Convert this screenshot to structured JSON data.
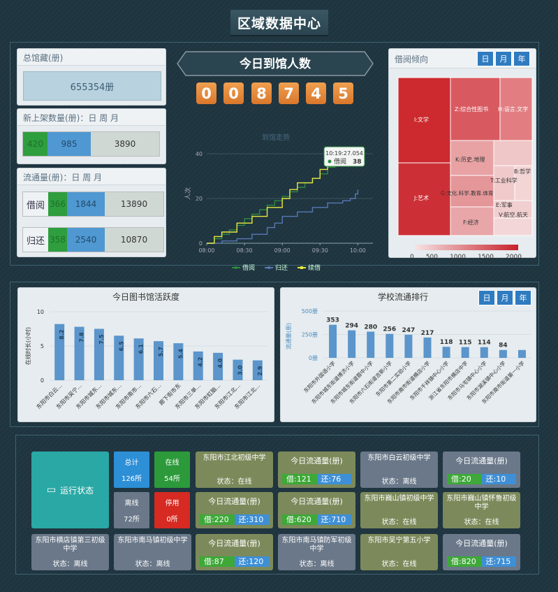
{
  "page_title": "区域数据中心",
  "collection": {
    "label": "总馆藏(册)",
    "value": "655354册"
  },
  "new_shelf": {
    "label": "新上架数量(册)：日 周 月",
    "values": [
      "420",
      "985",
      "3890"
    ]
  },
  "circulation": {
    "label": "流通量(册)：日 周 月",
    "borrow": {
      "label": "借阅",
      "values": [
        "366",
        "1844",
        "13890"
      ]
    },
    "return": {
      "label": "归还",
      "values": [
        "358",
        "2540",
        "10870"
      ]
    }
  },
  "today_visitors": {
    "title": "今日到馆人数",
    "digits": [
      "0",
      "0",
      "8",
      "7",
      "4",
      "5"
    ]
  },
  "line_chart": {
    "title": "到馆走势",
    "ylabel": "人次",
    "tooltip_time": "10:19:27.054",
    "tooltip_label": "借阅",
    "tooltip_value": "38",
    "legend": [
      "借阅",
      "归还",
      "续借"
    ],
    "colors": {
      "borrow": "#2e8b3e",
      "return": "#5a78b5",
      "renew": "#e8e840"
    }
  },
  "tendency": {
    "title": "借阅倾向",
    "tabs": [
      "日",
      "月",
      "年"
    ],
    "scale": [
      "0",
      "500",
      "1000",
      "1500",
      "2000"
    ],
    "labels": [
      "I:文学",
      "Z:综合性图书",
      "H:语言.文字",
      "K:历史.地理",
      "J:艺术",
      "G:文化.科学.教育.体育",
      "T:工业科学",
      "B:哲学",
      "E:军事",
      "F:经济",
      "V:航空.航天"
    ]
  },
  "activity": {
    "title": "今日图书馆活跃度",
    "ylabel": "在线时长(小时)"
  },
  "ranking": {
    "title": "学校流通排行",
    "tabs": [
      "日",
      "月",
      "年"
    ],
    "ylabel": "流通量(册)"
  },
  "status": {
    "main_label": "运行状态",
    "total": {
      "label": "总计",
      "value": "126所"
    },
    "online": {
      "label": "在线",
      "value": "54所"
    },
    "offline": {
      "label": "离线",
      "value": "72所"
    },
    "disabled": {
      "label": "停用",
      "value": "0所"
    },
    "flow_label": "今日流通量(册)",
    "schools": [
      {
        "name": "东阳市江北初级中学",
        "status": "状态：在线"
      },
      {
        "name": "东阳市白云初级中学",
        "status": "状态：离线"
      },
      {
        "name": "东阳市巍山镇初级中学",
        "status": "状态：在线"
      },
      {
        "name": "东阳市巍山镇怀鲁初级中学",
        "status": "状态：在线"
      },
      {
        "name": "东阳市横店镇第三初级中学",
        "status": "状态：离线"
      },
      {
        "name": "东阳市南马镇初级中学",
        "status": "状态：离线"
      },
      {
        "name": "东阳市南马镇防军初级中学",
        "status": "状态：离线"
      },
      {
        "name": "东阳市吴宁第五小学",
        "status": "状态：在线"
      }
    ],
    "flows": [
      {
        "borrow": "借:121",
        "return": "还:76"
      },
      {
        "borrow": "借:20",
        "return": "还:10"
      },
      {
        "borrow": "借:220",
        "return": "还:310"
      },
      {
        "borrow": "借:620",
        "return": "还:710"
      },
      {
        "borrow": "借:87",
        "return": "还:120"
      },
      {
        "borrow": "借:820",
        "return": "还:715"
      }
    ]
  },
  "chart_data": [
    {
      "type": "line",
      "title": "到馆走势",
      "ylabel": "人次",
      "xlabel": "",
      "x_ticks": [
        "08:00",
        "08:30",
        "09:00",
        "09:30",
        "10:00"
      ],
      "y_ticks": [
        "0",
        "20",
        "40"
      ],
      "ylim": [
        0,
        45
      ],
      "series": [
        {
          "name": "借阅",
          "points": [
            [
              0,
              0
            ],
            [
              6,
              2
            ],
            [
              12,
              4
            ],
            [
              18,
              6
            ],
            [
              24,
              8
            ],
            [
              30,
              11
            ],
            [
              36,
              13
            ],
            [
              42,
              15
            ],
            [
              48,
              17
            ],
            [
              54,
              19
            ],
            [
              60,
              21
            ],
            [
              66,
              23
            ],
            [
              72,
              25
            ],
            [
              78,
              27
            ],
            [
              84,
              29
            ],
            [
              90,
              31
            ],
            [
              96,
              34
            ],
            [
              102,
              36
            ],
            [
              108,
              37
            ],
            [
              114,
              38
            ],
            [
              120,
              38
            ]
          ]
        },
        {
          "name": "归还",
          "points": [
            [
              0,
              0
            ],
            [
              12,
              1
            ],
            [
              24,
              2
            ],
            [
              36,
              4
            ],
            [
              48,
              7
            ],
            [
              54,
              9
            ],
            [
              60,
              12
            ],
            [
              72,
              14
            ],
            [
              84,
              16
            ],
            [
              96,
              18
            ],
            [
              108,
              19
            ],
            [
              114,
              20
            ],
            [
              118,
              22
            ],
            [
              120,
              24
            ]
          ]
        },
        {
          "name": "续借",
          "points": [
            [
              0,
              0
            ],
            [
              6,
              3
            ],
            [
              12,
              5
            ],
            [
              24,
              9
            ],
            [
              36,
              12
            ],
            [
              48,
              16
            ],
            [
              60,
              20
            ],
            [
              66,
              24
            ],
            [
              72,
              27
            ],
            [
              84,
              29
            ],
            [
              90,
              33
            ],
            [
              96,
              35
            ],
            [
              108,
              37
            ],
            [
              114,
              39
            ],
            [
              120,
              40
            ]
          ]
        }
      ]
    },
    {
      "type": "treemap",
      "title": "借阅倾向",
      "items": [
        {
          "name": "I:文学",
          "value": 2000
        },
        {
          "name": "J:艺术",
          "value": 1950
        },
        {
          "name": "Z:综合性图书",
          "value": 1300
        },
        {
          "name": "H:语言.文字",
          "value": 1000
        },
        {
          "name": "K:历史.地理",
          "value": 700
        },
        {
          "name": "G:文化.科学.教育.体育",
          "value": 600
        },
        {
          "name": "T:工业科学",
          "value": 500
        },
        {
          "name": "F:经济",
          "value": 600
        },
        {
          "name": "B:哲学",
          "value": 300
        },
        {
          "name": "E:军事",
          "value": 200
        },
        {
          "name": "V:航空.航天",
          "value": 200
        }
      ],
      "scale": [
        0,
        2000
      ]
    },
    {
      "type": "bar",
      "title": "今日图书馆活跃度",
      "ylabel": "在线时长(小时)",
      "y_ticks": [
        "0",
        "5",
        "10"
      ],
      "ylim": [
        0,
        10
      ],
      "categories": [
        "东阳市白云...",
        "东阳市吴宁...",
        "东阳市城东...",
        "东阳市城东...",
        "东阳市南市...",
        "东阳市六石...",
        "廊下街市东",
        "东阳市三单...",
        "东阳市虹脑...",
        "东阳市江北...",
        "东阳市江北..."
      ],
      "values": [
        8.2,
        7.8,
        7.5,
        6.5,
        6.1,
        5.7,
        5.4,
        4.2,
        4.0,
        3.0,
        2.9
      ],
      "value_labels": [
        "8.2",
        "7.8",
        "7.5",
        "6.5",
        "6.1",
        "5.7",
        "5.4",
        "4.2",
        "4.0",
        "3.0",
        "2.9"
      ]
    },
    {
      "type": "bar",
      "title": "学校流通排行",
      "ylabel": "流通量(册)",
      "y_ticks": [
        "0册",
        "250册",
        "500册"
      ],
      "ylim": [
        0,
        500
      ],
      "categories": [
        "东阳市外国语小学",
        "东阳市城东街道博济小学",
        "东阳市城东街道蓉中小学",
        "东阳市六石街道吉新小学",
        "东阳市第二实验小学",
        "东阳市南市街道横店小学",
        "东阳市千祥镇中心小学",
        "浙江省东阳市横店中学",
        "东阳市马宅镇中心小学",
        "东阳市湖溪镇中心小学",
        "东阳市南市街道第一小学"
      ],
      "values": [
        353,
        294,
        280,
        256,
        247,
        217,
        118,
        115,
        114,
        84,
        84
      ],
      "value_labels": [
        "353",
        "294",
        "280",
        "256",
        "247",
        "217",
        "118",
        "115",
        "114",
        "84",
        ""
      ]
    }
  ]
}
